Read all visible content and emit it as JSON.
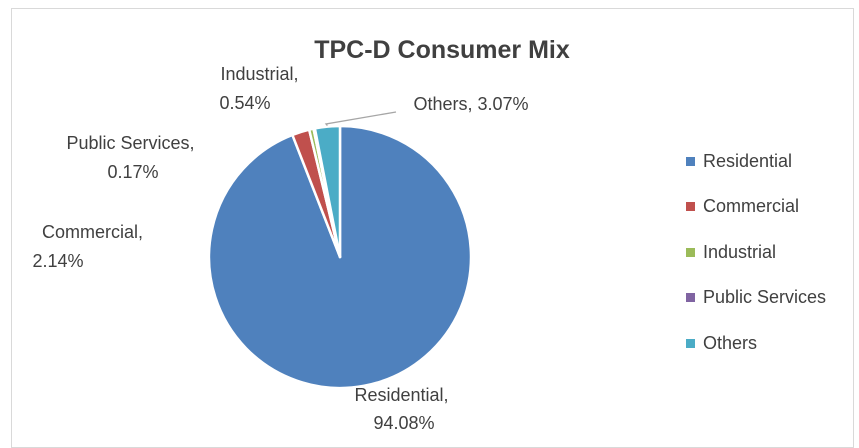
{
  "chart_data": {
    "type": "pie",
    "title": "TPC-D Consumer Mix",
    "categories": [
      "Residential",
      "Commercial",
      "Industrial",
      "Public Services",
      "Others"
    ],
    "values": [
      94.08,
      2.14,
      0.54,
      0.17,
      3.07
    ],
    "colors": [
      "#4f81bd",
      "#c0504d",
      "#9bbb59",
      "#8064a2",
      "#4bacc6"
    ],
    "data_labels": [
      [
        "Residential,",
        "94.08%"
      ],
      [
        "Commercial,",
        "2.14%"
      ],
      [
        "Industrial,",
        "0.54%"
      ],
      [
        "Public Services,",
        "0.17%"
      ],
      [
        "Others, 3.07%"
      ]
    ],
    "legend_position": "right"
  }
}
